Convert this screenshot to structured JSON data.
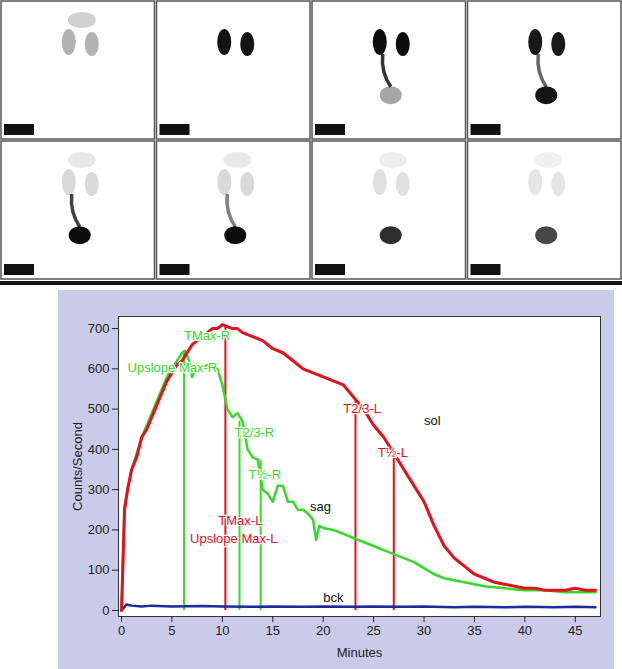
{
  "scan_images": {
    "rows": 2,
    "columns": 4
  },
  "chart_data": {
    "type": "line",
    "xlabel": "Minutes",
    "ylabel": "Counts/Second",
    "xlim": [
      -0.3,
      47.5
    ],
    "ylim": [
      -15,
      730
    ],
    "xticks": [
      0,
      5,
      10,
      15,
      20,
      25,
      30,
      35,
      40,
      45
    ],
    "yticks": [
      0,
      100,
      200,
      300,
      400,
      500,
      600,
      700
    ],
    "grid": false,
    "series": [
      {
        "name": "sol",
        "color": "#e4101e",
        "label_x": 30,
        "label_y": 470,
        "x": [
          0,
          0.3,
          0.6,
          1,
          1.5,
          2,
          2.5,
          3,
          3.5,
          4,
          4.5,
          5,
          5.5,
          6,
          6.5,
          7,
          7.5,
          8,
          8.5,
          9,
          9.5,
          10,
          10.5,
          11,
          11.5,
          12,
          13,
          14,
          15,
          16,
          17,
          18,
          19,
          20,
          21,
          22,
          23,
          24,
          25,
          26,
          27,
          28,
          29,
          30,
          31,
          32,
          33,
          34,
          35,
          36,
          37,
          38,
          39,
          40,
          41,
          42,
          43,
          44,
          45,
          46,
          47
        ],
        "values": [
          0,
          250,
          300,
          350,
          380,
          430,
          450,
          480,
          510,
          540,
          570,
          590,
          610,
          620,
          640,
          660,
          670,
          680,
          690,
          700,
          700,
          710,
          705,
          700,
          700,
          690,
          680,
          670,
          650,
          640,
          620,
          600,
          590,
          580,
          570,
          560,
          530,
          500,
          460,
          430,
          390,
          350,
          310,
          270,
          210,
          160,
          130,
          110,
          90,
          80,
          70,
          65,
          60,
          55,
          55,
          50,
          50,
          50,
          55,
          50,
          50
        ]
      },
      {
        "name": "sag",
        "color": "#36d82a",
        "label_x": 18.7,
        "label_y": 258,
        "x": [
          0,
          0.3,
          0.6,
          1,
          1.5,
          2,
          2.5,
          3,
          3.5,
          4,
          4.5,
          5,
          5.5,
          6,
          6.3,
          6.7,
          7,
          7.5,
          8,
          8.5,
          9,
          9.5,
          10,
          10.5,
          11,
          11.5,
          12,
          12.5,
          13,
          13.5,
          14,
          14.5,
          15,
          15.5,
          16,
          16.5,
          17,
          17.5,
          18,
          18.5,
          19,
          19.3,
          19.6,
          20,
          21,
          22,
          23,
          24,
          25,
          26,
          27,
          28,
          29,
          30,
          31,
          32,
          33,
          34,
          35,
          36,
          38,
          40,
          42,
          44,
          46,
          47
        ],
        "values": [
          0,
          260,
          300,
          350,
          390,
          430,
          460,
          490,
          520,
          550,
          580,
          600,
          620,
          640,
          645,
          620,
          580,
          610,
          600,
          610,
          605,
          600,
          560,
          500,
          480,
          490,
          470,
          400,
          380,
          375,
          300,
          290,
          270,
          310,
          310,
          270,
          270,
          250,
          250,
          240,
          225,
          175,
          210,
          205,
          200,
          190,
          180,
          170,
          160,
          150,
          140,
          130,
          120,
          105,
          90,
          80,
          75,
          70,
          65,
          60,
          55,
          50,
          50,
          45,
          45,
          45
        ]
      },
      {
        "name": "bck",
        "color": "#1b2a9c",
        "label_x": 20,
        "label_y": 32,
        "x": [
          0,
          0.5,
          1,
          2,
          3,
          5,
          8,
          10,
          13,
          15,
          18,
          20,
          23,
          25,
          28,
          30,
          33,
          35,
          38,
          40,
          43,
          45,
          47
        ],
        "values": [
          0,
          15,
          12,
          10,
          12,
          10,
          11,
          10,
          9,
          10,
          9,
          10,
          9,
          10,
          9,
          10,
          8,
          9,
          8,
          9,
          8,
          9,
          8
        ]
      }
    ],
    "annotations": [
      {
        "text": "TMax-R",
        "x": 6.2,
        "y": 645,
        "label_x": 6.2,
        "label_y": 682,
        "color": "#36d82a"
      },
      {
        "text": "Upslope Max-R",
        "x": 6.2,
        "y": 645,
        "label_x": 0.6,
        "label_y": 603,
        "color": "#36d82a"
      },
      {
        "text": "T2/3-R",
        "x": 11.7,
        "y": 470,
        "label_x": 11.2,
        "label_y": 442,
        "color": "#36d82a"
      },
      {
        "text": "T½-R",
        "x": 13.8,
        "y": 372,
        "label_x": 12.6,
        "label_y": 338,
        "color": "#36d82a"
      },
      {
        "text": "TMax-L",
        "x": 10.3,
        "y": 705,
        "label_x": 9.6,
        "label_y": 222,
        "color": "#e4101e"
      },
      {
        "text": "Upslope Max-L",
        "x": 10.3,
        "y": 705,
        "label_x": 6.8,
        "label_y": 178,
        "color": "#e4101e"
      },
      {
        "text": "T2/3-L",
        "x": 23.2,
        "y": 525,
        "label_x": 22.0,
        "label_y": 500,
        "color": "#e4101e"
      },
      {
        "text": "T½-L",
        "x": 27,
        "y": 390,
        "label_x": 25.4,
        "label_y": 392,
        "color": "#e4101e"
      }
    ]
  }
}
